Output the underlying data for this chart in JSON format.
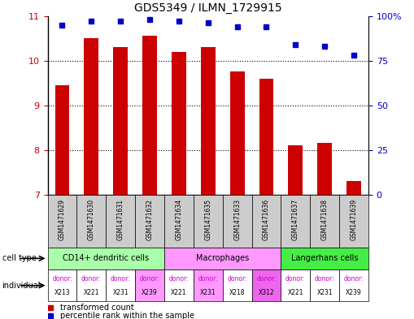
{
  "title": "GDS5349 / ILMN_1729915",
  "samples": [
    "GSM1471629",
    "GSM1471630",
    "GSM1471631",
    "GSM1471632",
    "GSM1471634",
    "GSM1471635",
    "GSM1471633",
    "GSM1471636",
    "GSM1471637",
    "GSM1471638",
    "GSM1471639"
  ],
  "transformed_counts": [
    9.45,
    10.5,
    10.3,
    10.55,
    10.2,
    10.3,
    9.75,
    9.6,
    8.1,
    8.15,
    7.3
  ],
  "percentile_ranks": [
    95,
    97,
    97,
    98,
    97,
    96,
    94,
    94,
    84,
    83,
    78
  ],
  "ylim_left": [
    7,
    11
  ],
  "ylim_right": [
    0,
    100
  ],
  "yticks_left": [
    7,
    8,
    9,
    10,
    11
  ],
  "yticks_right": [
    0,
    25,
    50,
    75,
    100
  ],
  "cell_groups": [
    {
      "label": "CD14+ dendritic cells",
      "start": 0,
      "end": 4,
      "color": "#aaffaa"
    },
    {
      "label": "Macrophages",
      "start": 4,
      "end": 8,
      "color": "#ff99ff"
    },
    {
      "label": "Langerhans cells",
      "start": 8,
      "end": 11,
      "color": "#44ee44"
    }
  ],
  "ind_data": [
    {
      "donor": "X213",
      "color": "#ffffff"
    },
    {
      "donor": "X221",
      "color": "#ffffff"
    },
    {
      "donor": "X231",
      "color": "#ffffff"
    },
    {
      "donor": "X239",
      "color": "#ff99ff"
    },
    {
      "donor": "X221",
      "color": "#ffffff"
    },
    {
      "donor": "X231",
      "color": "#ff99ff"
    },
    {
      "donor": "X218",
      "color": "#ffffff"
    },
    {
      "donor": "X312",
      "color": "#ee66ee"
    },
    {
      "donor": "X221",
      "color": "#ffffff"
    },
    {
      "donor": "X231",
      "color": "#ffffff"
    },
    {
      "donor": "X239",
      "color": "#ffffff"
    }
  ],
  "bar_color": "#cc0000",
  "dot_color": "#0000cc",
  "bar_bottom": 7,
  "bar_width": 0.5,
  "left_axis_color": "#cc0000",
  "right_axis_color": "#0000cc",
  "sample_box_color": "#cccccc",
  "donor_label_color": "#cc00cc",
  "donor_id_color": "#000000"
}
